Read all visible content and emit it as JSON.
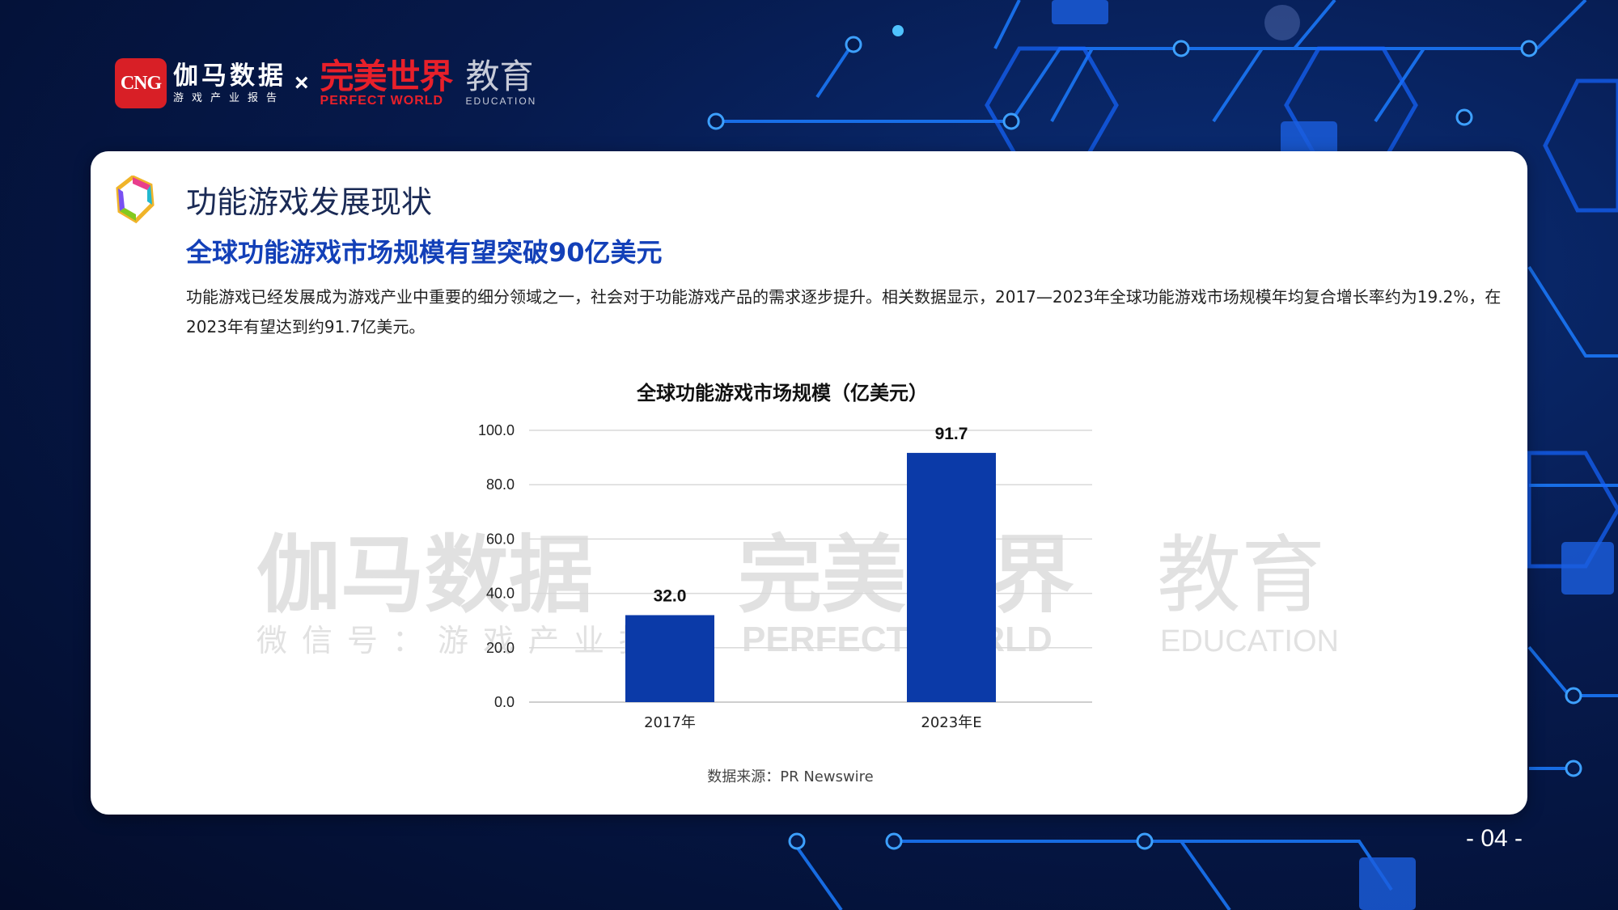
{
  "brand": {
    "cng_badge": "CNG",
    "jiama_name": "伽马数据",
    "jiama_sub": "游戏产业报告",
    "times": "×",
    "pw_cn": "完美世界",
    "pw_en": "PERFECT WORLD",
    "edu_cn": "教育",
    "edu_en": "EDUCATION"
  },
  "card": {
    "section_title": "功能游戏发展现状",
    "headline": "全球功能游戏市场规模有望突破90亿美元",
    "body_text": "功能游戏已经发展成为游戏产业中重要的细分领域之一，社会对于功能游戏产品的需求逐步提升。相关数据显示，2017—2023年全球功能游戏市场规模年均复合增长率约为19.2%，在2023年有望达到约91.7亿美元。",
    "source": "数据来源：PR Newswire"
  },
  "watermark": {
    "jiama": "伽马数据",
    "jiama_sub": "微信号：游戏产业报告",
    "pw_cn": "完美世界",
    "pw_en": "PERFECT WORLD",
    "edu_cn": "教育",
    "edu_en": "EDUCATION"
  },
  "chart_data": {
    "type": "bar",
    "title": "全球功能游戏市场规模（亿美元）",
    "categories": [
      "2017年",
      "2023年E"
    ],
    "values": [
      32.0,
      91.7
    ],
    "value_labels": [
      "32.0",
      "91.7"
    ],
    "ylim": [
      0,
      100
    ],
    "yticks": [
      "0.0",
      "20.0",
      "40.0",
      "60.0",
      "80.0",
      "100.0"
    ],
    "ytick_values": [
      0,
      20,
      40,
      60,
      80,
      100
    ],
    "grid": true,
    "bar_color": "#0b3aa8"
  },
  "page_number": "- 04 -"
}
